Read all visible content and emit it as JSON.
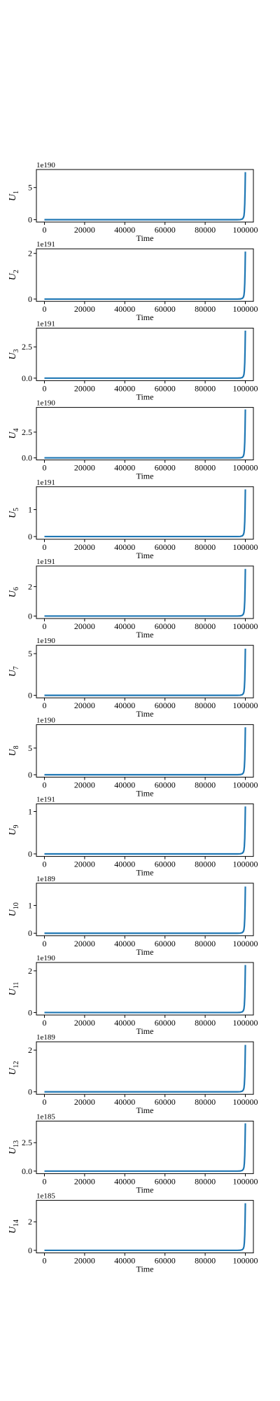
{
  "colors": {
    "series": "#1f77b4",
    "axes": "#000000",
    "background": "#ffffff"
  },
  "chart_data": [
    {
      "type": "line",
      "ylabel_main": "U",
      "ylabel_sub": "1",
      "xlabel": "Time",
      "offset_text": "1e190",
      "xlim": [
        -4000,
        104000
      ],
      "ylim": [
        -0.37,
        7.8
      ],
      "yticks": [
        0,
        5
      ],
      "ytick_labels": [
        "0",
        "5"
      ],
      "xticks": [
        0,
        20000,
        40000,
        60000,
        80000,
        100000
      ],
      "xtick_labels": [
        "0",
        "20000",
        "40000",
        "60000",
        "80000",
        "100000"
      ],
      "x": [
        0,
        96000,
        97500,
        98500,
        99000,
        99300,
        99500,
        99700,
        99850,
        100000
      ],
      "y": [
        0,
        0,
        0.02,
        0.1,
        0.3,
        0.6,
        1.2,
        2.5,
        4.5,
        7.4
      ]
    },
    {
      "type": "line",
      "ylabel_main": "U",
      "ylabel_sub": "2",
      "xlabel": "Time",
      "offset_text": "1e191",
      "xlim": [
        -4000,
        104000
      ],
      "ylim": [
        -0.1,
        2.2
      ],
      "yticks": [
        0,
        2
      ],
      "ytick_labels": [
        "0",
        "2"
      ],
      "xticks": [
        0,
        20000,
        40000,
        60000,
        80000,
        100000
      ],
      "xtick_labels": [
        "0",
        "20000",
        "40000",
        "60000",
        "80000",
        "100000"
      ],
      "x": [
        0,
        96000,
        97500,
        98500,
        99000,
        99300,
        99500,
        99700,
        99850,
        100000
      ],
      "y": [
        0,
        0,
        0.005,
        0.03,
        0.08,
        0.17,
        0.33,
        0.7,
        1.25,
        2.08
      ]
    },
    {
      "type": "line",
      "ylabel_main": "U",
      "ylabel_sub": "3",
      "xlabel": "Time",
      "offset_text": "1e191",
      "xlim": [
        -4000,
        104000
      ],
      "ylim": [
        -0.2,
        4.0
      ],
      "yticks": [
        0,
        2.5
      ],
      "ytick_labels": [
        "0.0",
        "2.5"
      ],
      "xticks": [
        0,
        20000,
        40000,
        60000,
        80000,
        100000
      ],
      "xtick_labels": [
        "0",
        "20000",
        "40000",
        "60000",
        "80000",
        "100000"
      ],
      "x": [
        0,
        96000,
        97500,
        98500,
        99000,
        99300,
        99500,
        99700,
        99850,
        100000
      ],
      "y": [
        0,
        0,
        0.01,
        0.05,
        0.15,
        0.3,
        0.6,
        1.25,
        2.3,
        3.8
      ]
    },
    {
      "type": "line",
      "ylabel_main": "U",
      "ylabel_sub": "4",
      "xlabel": "Time",
      "offset_text": "1e190",
      "xlim": [
        -4000,
        104000
      ],
      "ylim": [
        -0.2,
        4.9
      ],
      "yticks": [
        0,
        2.5
      ],
      "ytick_labels": [
        "0.0",
        "2.5"
      ],
      "xticks": [
        0,
        20000,
        40000,
        60000,
        80000,
        100000
      ],
      "xtick_labels": [
        "0",
        "20000",
        "40000",
        "60000",
        "80000",
        "100000"
      ],
      "x": [
        0,
        96000,
        97500,
        98500,
        99000,
        99300,
        99500,
        99700,
        99850,
        100000
      ],
      "y": [
        0,
        0,
        0.01,
        0.06,
        0.18,
        0.38,
        0.75,
        1.55,
        2.85,
        4.7
      ]
    },
    {
      "type": "line",
      "ylabel_main": "U",
      "ylabel_sub": "5",
      "xlabel": "Time",
      "offset_text": "1e191",
      "xlim": [
        -4000,
        104000
      ],
      "ylim": [
        -0.1,
        1.85
      ],
      "yticks": [
        0,
        1
      ],
      "ytick_labels": [
        "0",
        "1"
      ],
      "xticks": [
        0,
        20000,
        40000,
        60000,
        80000,
        100000
      ],
      "xtick_labels": [
        "0",
        "20000",
        "40000",
        "60000",
        "80000",
        "100000"
      ],
      "x": [
        0,
        96000,
        97500,
        98500,
        99000,
        99300,
        99500,
        99700,
        99850,
        100000
      ],
      "y": [
        0,
        0,
        0.004,
        0.025,
        0.07,
        0.14,
        0.27,
        0.57,
        1.05,
        1.75
      ]
    },
    {
      "type": "line",
      "ylabel_main": "U",
      "ylabel_sub": "6",
      "xlabel": "Time",
      "offset_text": "1e191",
      "xlim": [
        -4000,
        104000
      ],
      "ylim": [
        -0.17,
        3.4
      ],
      "yticks": [
        0,
        2
      ],
      "ytick_labels": [
        "0",
        "2"
      ],
      "xticks": [
        0,
        20000,
        40000,
        60000,
        80000,
        100000
      ],
      "xtick_labels": [
        "0",
        "20000",
        "40000",
        "60000",
        "80000",
        "100000"
      ],
      "x": [
        0,
        96000,
        97500,
        98500,
        99000,
        99300,
        99500,
        99700,
        99850,
        100000
      ],
      "y": [
        0,
        0,
        0.008,
        0.045,
        0.13,
        0.26,
        0.52,
        1.05,
        1.95,
        3.2
      ]
    },
    {
      "type": "line",
      "ylabel_main": "U",
      "ylabel_sub": "7",
      "xlabel": "Time",
      "offset_text": "1e190",
      "xlim": [
        -4000,
        104000
      ],
      "ylim": [
        -0.3,
        6.0
      ],
      "yticks": [
        0,
        5
      ],
      "ytick_labels": [
        "0",
        "5"
      ],
      "xticks": [
        0,
        20000,
        40000,
        60000,
        80000,
        100000
      ],
      "xtick_labels": [
        "0",
        "20000",
        "40000",
        "60000",
        "80000",
        "100000"
      ],
      "x": [
        0,
        96000,
        97500,
        98500,
        99000,
        99300,
        99500,
        99700,
        99850,
        100000
      ],
      "y": [
        0,
        0,
        0.015,
        0.08,
        0.22,
        0.45,
        0.9,
        1.85,
        3.4,
        5.6
      ]
    },
    {
      "type": "line",
      "ylabel_main": "U",
      "ylabel_sub": "8",
      "xlabel": "Time",
      "offset_text": "1e190",
      "xlim": [
        -4000,
        104000
      ],
      "ylim": [
        -0.45,
        9.4
      ],
      "yticks": [
        0,
        5
      ],
      "ytick_labels": [
        "0",
        "5"
      ],
      "xticks": [
        0,
        20000,
        40000,
        60000,
        80000,
        100000
      ],
      "xtick_labels": [
        "0",
        "20000",
        "40000",
        "60000",
        "80000",
        "100000"
      ],
      "x": [
        0,
        96000,
        97500,
        98500,
        99000,
        99300,
        99500,
        99700,
        99850,
        100000
      ],
      "y": [
        0,
        0,
        0.025,
        0.13,
        0.35,
        0.72,
        1.45,
        2.95,
        5.4,
        8.9
      ]
    },
    {
      "type": "line",
      "ylabel_main": "U",
      "ylabel_sub": "9",
      "xlabel": "Time",
      "offset_text": "1e191",
      "xlim": [
        -4000,
        104000
      ],
      "ylim": [
        -0.06,
        1.18
      ],
      "yticks": [
        0,
        1
      ],
      "ytick_labels": [
        "0",
        "1"
      ],
      "xticks": [
        0,
        20000,
        40000,
        60000,
        80000,
        100000
      ],
      "xtick_labels": [
        "0",
        "20000",
        "40000",
        "60000",
        "80000",
        "100000"
      ],
      "x": [
        0,
        96000,
        97500,
        98500,
        99000,
        99300,
        99500,
        99700,
        99850,
        100000
      ],
      "y": [
        0,
        0,
        0.003,
        0.016,
        0.045,
        0.09,
        0.18,
        0.37,
        0.68,
        1.12
      ]
    },
    {
      "type": "line",
      "ylabel_main": "U",
      "ylabel_sub": "10",
      "xlabel": "Time",
      "offset_text": "1e189",
      "xlim": [
        -4000,
        104000
      ],
      "ylim": [
        -0.09,
        1.8
      ],
      "yticks": [
        0,
        1
      ],
      "ytick_labels": [
        "0",
        "1"
      ],
      "xticks": [
        0,
        20000,
        40000,
        60000,
        80000,
        100000
      ],
      "xtick_labels": [
        "0",
        "20000",
        "40000",
        "60000",
        "80000",
        "100000"
      ],
      "x": [
        0,
        96000,
        97500,
        98500,
        99000,
        99300,
        99500,
        99700,
        99850,
        100000
      ],
      "y": [
        0,
        0,
        0.004,
        0.024,
        0.065,
        0.13,
        0.26,
        0.55,
        1.0,
        1.68
      ]
    },
    {
      "type": "line",
      "ylabel_main": "U",
      "ylabel_sub": "11",
      "xlabel": "Time",
      "offset_text": "1e190",
      "xlim": [
        -4000,
        104000
      ],
      "ylim": [
        -0.12,
        2.4
      ],
      "yticks": [
        0,
        2
      ],
      "ytick_labels": [
        "0",
        "2"
      ],
      "xticks": [
        0,
        20000,
        40000,
        60000,
        80000,
        100000
      ],
      "xtick_labels": [
        "0",
        "20000",
        "40000",
        "60000",
        "80000",
        "100000"
      ],
      "x": [
        0,
        96000,
        97500,
        98500,
        99000,
        99300,
        99500,
        99700,
        99850,
        100000
      ],
      "y": [
        0,
        0,
        0.006,
        0.033,
        0.09,
        0.18,
        0.36,
        0.75,
        1.37,
        2.28
      ]
    },
    {
      "type": "line",
      "ylabel_main": "U",
      "ylabel_sub": "12",
      "xlabel": "Time",
      "offset_text": "1e189",
      "xlim": [
        -4000,
        104000
      ],
      "ylim": [
        -0.12,
        2.4
      ],
      "yticks": [
        0,
        2
      ],
      "ytick_labels": [
        "0",
        "2"
      ],
      "xticks": [
        0,
        20000,
        40000,
        60000,
        80000,
        100000
      ],
      "xtick_labels": [
        "0",
        "20000",
        "40000",
        "60000",
        "80000",
        "100000"
      ],
      "x": [
        0,
        96000,
        97500,
        98500,
        99000,
        99300,
        99500,
        99700,
        99850,
        100000
      ],
      "y": [
        0,
        0,
        0.006,
        0.033,
        0.09,
        0.18,
        0.36,
        0.75,
        1.37,
        2.25
      ]
    },
    {
      "type": "line",
      "ylabel_main": "U",
      "ylabel_sub": "13",
      "xlabel": "Time",
      "offset_text": "1e185",
      "xlim": [
        -4000,
        104000
      ],
      "ylim": [
        -0.22,
        4.4
      ],
      "yticks": [
        0,
        2.5
      ],
      "ytick_labels": [
        "0.0",
        "2.5"
      ],
      "xticks": [
        0,
        20000,
        40000,
        60000,
        80000,
        100000
      ],
      "xtick_labels": [
        "0",
        "20000",
        "40000",
        "60000",
        "80000",
        "100000"
      ],
      "x": [
        0,
        96000,
        97500,
        98500,
        99000,
        99300,
        99500,
        99700,
        99850,
        100000
      ],
      "y": [
        0,
        0,
        0.011,
        0.06,
        0.17,
        0.34,
        0.68,
        1.4,
        2.6,
        4.2
      ]
    },
    {
      "type": "line",
      "ylabel_main": "U",
      "ylabel_sub": "14",
      "xlabel": "Time",
      "offset_text": "1e185",
      "xlim": [
        -4000,
        104000
      ],
      "ylim": [
        -0.18,
        3.5
      ],
      "yticks": [
        0,
        2
      ],
      "ytick_labels": [
        "0",
        "2"
      ],
      "xticks": [
        0,
        20000,
        40000,
        60000,
        80000,
        100000
      ],
      "xtick_labels": [
        "0",
        "20000",
        "40000",
        "60000",
        "80000",
        "100000"
      ],
      "x": [
        0,
        96000,
        97500,
        98500,
        99000,
        99300,
        99500,
        99700,
        99850,
        100000
      ],
      "y": [
        0,
        0,
        0.008,
        0.047,
        0.13,
        0.27,
        0.53,
        1.1,
        2.0,
        3.3
      ]
    }
  ]
}
